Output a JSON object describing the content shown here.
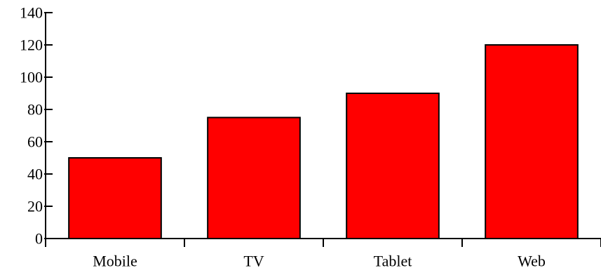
{
  "chart_data": {
    "type": "bar",
    "title": "",
    "xlabel": "",
    "ylabel": "",
    "categories": [
      "Mobile",
      "TV",
      "Tablet",
      "Web"
    ],
    "values": [
      50,
      75,
      90,
      120
    ],
    "ylim": [
      0,
      140
    ],
    "yticks": [
      0,
      20,
      40,
      60,
      80,
      100,
      120,
      140
    ],
    "grid": false,
    "legend": "none",
    "colors": {
      "bar_fill": "#ff0000",
      "bar_stroke": "#000000",
      "axis": "#000000",
      "background": "#ffffff"
    }
  }
}
